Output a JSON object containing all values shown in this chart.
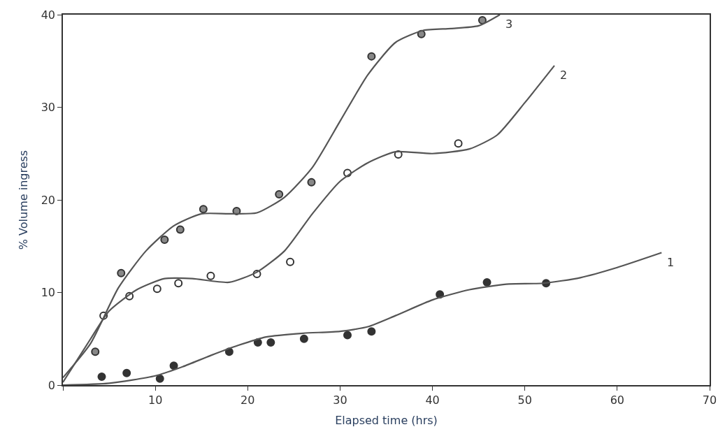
{
  "chart_data": {
    "type": "scatter",
    "xlabel": "Elapsed time (hrs)",
    "ylabel": "% Volume ingress",
    "xlim": [
      0,
      70
    ],
    "ylim": [
      0,
      40
    ],
    "xticks": [
      {
        "value": 0,
        "label": null
      },
      10,
      20,
      30,
      40,
      50,
      60,
      70
    ],
    "yticks": [
      0,
      10,
      20,
      30,
      40
    ],
    "legend": false,
    "marker": "circle",
    "series": [
      {
        "color": "#333333",
        "x": [
          4.2,
          6.9,
          10.5,
          12.0,
          18.0,
          21.1,
          22.5,
          26.1,
          30.8,
          33.4,
          40.8,
          45.9,
          52.3
        ],
        "values": [
          0.9,
          1.3,
          0.7,
          2.1,
          3.6,
          4.6,
          4.6,
          5.0,
          5.4,
          5.8,
          9.8,
          11.1,
          11.0
        ]
      },
      {
        "color": "#ffffff",
        "x": [
          4.4,
          7.2,
          10.2,
          12.5,
          16.0,
          21.0,
          24.6,
          30.8,
          36.3,
          42.8
        ],
        "values": [
          7.5,
          9.6,
          10.4,
          11.0,
          11.8,
          12.0,
          13.3,
          22.9,
          24.9,
          26.1
        ]
      },
      {
        "color": "#888888",
        "x": [
          3.5,
          6.3,
          11.0,
          12.7,
          15.2,
          18.8,
          23.4,
          26.9,
          33.4,
          38.8,
          45.4
        ],
        "values": [
          3.6,
          12.1,
          15.7,
          16.8,
          19.0,
          18.8,
          20.6,
          21.9,
          35.5,
          37.9,
          39.4
        ]
      },
      {
        "type": "line",
        "name": "1",
        "color": "#555555",
        "marker": "none",
        "line_style": "solid",
        "x": [
          0,
          5,
          10,
          13,
          16,
          19,
          22,
          26,
          30,
          33,
          36,
          40,
          44,
          48,
          52,
          56,
          60,
          64.8
        ],
        "values": [
          0,
          0.2,
          1,
          2,
          3.2,
          4.3,
          5.2,
          5.6,
          5.8,
          6.3,
          7.5,
          9.2,
          10.3,
          10.9,
          11,
          11.6,
          12.7,
          14.3
        ]
      },
      {
        "type": "line",
        "name": "2",
        "color": "#555555",
        "marker": "none",
        "line_style": "solid",
        "x": [
          0,
          3,
          5,
          8,
          11,
          14,
          18,
          21,
          24,
          27,
          30,
          33,
          36,
          40,
          44,
          47,
          50,
          53.2
        ],
        "values": [
          0.3,
          5,
          8,
          10.3,
          11.5,
          11.5,
          11.1,
          12.2,
          14.5,
          18.5,
          22,
          24,
          25.2,
          25,
          25.5,
          27,
          30.5,
          34.5
        ]
      },
      {
        "type": "line",
        "name": "3",
        "color": "#555555",
        "marker": "none",
        "line_style": "solid",
        "x": [
          0,
          3,
          6,
          9,
          12,
          15,
          18,
          21,
          24,
          27,
          30,
          33,
          36,
          39,
          42,
          45,
          47.3
        ],
        "values": [
          0.8,
          4.5,
          10.5,
          14.5,
          17.2,
          18.5,
          18.5,
          18.6,
          20.3,
          23.5,
          28.5,
          33.5,
          37,
          38.3,
          38.5,
          38.8,
          40
        ]
      }
    ]
  }
}
